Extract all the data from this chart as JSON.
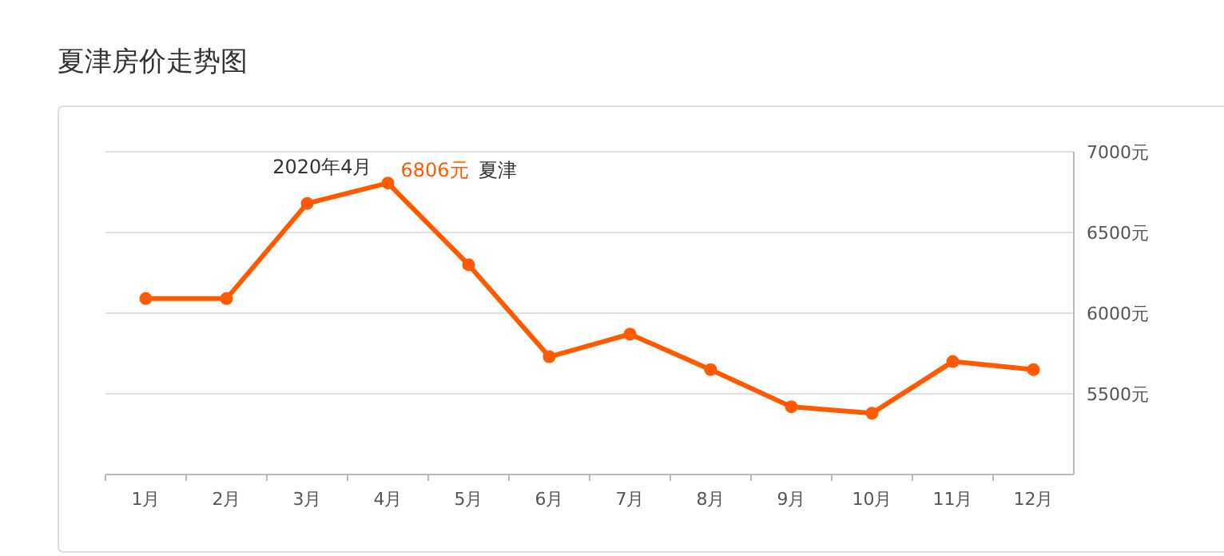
{
  "chart_data": {
    "type": "line",
    "title": "夏津房价走势图",
    "categories": [
      "1月",
      "2月",
      "3月",
      "4月",
      "5月",
      "6月",
      "7月",
      "8月",
      "9月",
      "10月",
      "11月",
      "12月"
    ],
    "series": [
      {
        "name": "夏津",
        "color": "#ff5a00",
        "values": [
          6090,
          6090,
          6680,
          6806,
          6300,
          5730,
          5870,
          5650,
          5420,
          5380,
          5700,
          5650
        ],
        "value_labels": [
          null,
          null,
          null,
          "6806元",
          null,
          null,
          null,
          null,
          null,
          null,
          null,
          null
        ]
      }
    ],
    "ylim": [
      5000,
      7000
    ],
    "yticks": [
      {
        "value": 5500,
        "label": "5500元"
      },
      {
        "value": 6000,
        "label": "6000元"
      },
      {
        "value": 6500,
        "label": "6500元"
      },
      {
        "value": 7000,
        "label": "7000元"
      }
    ],
    "grid": "y",
    "marker": "circle",
    "line_style": "solid",
    "annotations": [
      {
        "text": "2020年4月",
        "x": "4月",
        "y": 6806
      }
    ]
  }
}
